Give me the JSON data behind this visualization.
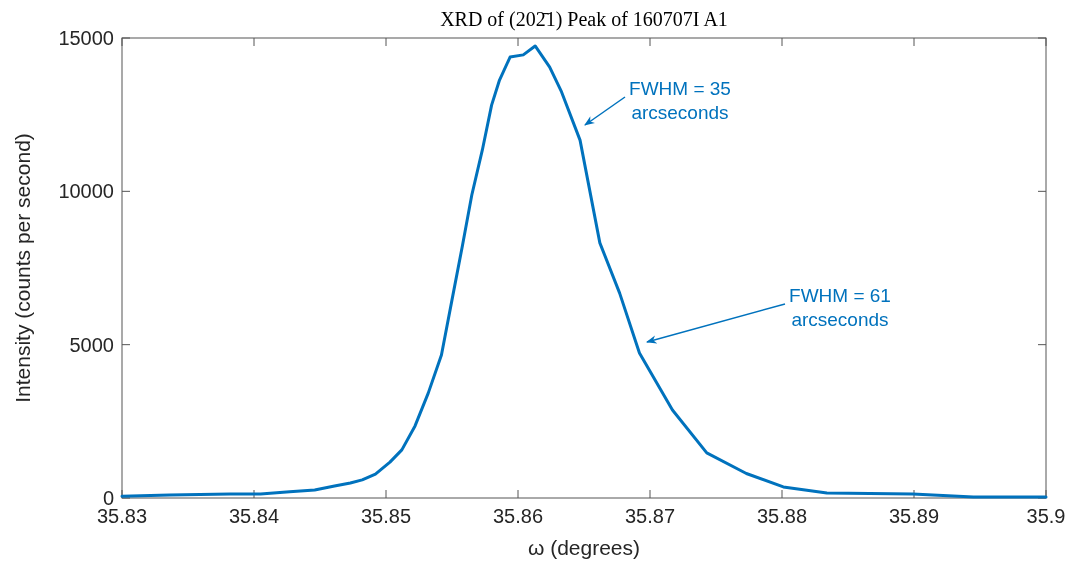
{
  "chart_data": {
    "type": "line",
    "title": "XRD of (202̄1) Peak of 160707I A1",
    "xlabel": "ω (degrees)",
    "ylabel": "Intensity (counts per second)",
    "xlim": [
      35.83,
      35.9
    ],
    "xticks": [
      35.83,
      35.84,
      35.85,
      35.86,
      35.87,
      35.88,
      35.89,
      35.9
    ],
    "ylim": [
      0,
      15000
    ],
    "yticks": [
      0,
      5000,
      10000,
      15000
    ],
    "grid": false,
    "line_style": "solid",
    "marker": "none",
    "series": [
      {
        "color": "#0072bd",
        "x": [
          35.83,
          35.8336,
          35.8382,
          35.8405,
          35.8427,
          35.8446,
          35.8461,
          35.8473,
          35.8482,
          35.8492,
          35.8503,
          35.8512,
          35.8522,
          35.8532,
          35.8542,
          35.855,
          35.8558,
          35.8565,
          35.8573,
          35.858,
          35.8586,
          35.8594,
          35.8604,
          35.8613,
          35.8624,
          35.8633,
          35.8647,
          35.8662,
          35.8677,
          35.8692,
          35.8717,
          35.8743,
          35.8773,
          35.8801,
          35.8834,
          35.8899,
          35.8945,
          35.9
        ],
        "values": [
          60,
          100,
          130,
          130,
          200,
          260,
          390,
          490,
          590,
          780,
          1170,
          1570,
          2350,
          3420,
          4660,
          6460,
          8250,
          9880,
          11350,
          12810,
          13630,
          14380,
          14450,
          14740,
          14050,
          13240,
          11670,
          8320,
          6680,
          4730,
          2870,
          1470,
          800,
          360,
          160,
          130,
          30,
          30
        ]
      }
    ],
    "annotations": [
      "FWHM = 35\narcseconds",
      "FWHM = 61\narcseconds"
    ]
  }
}
